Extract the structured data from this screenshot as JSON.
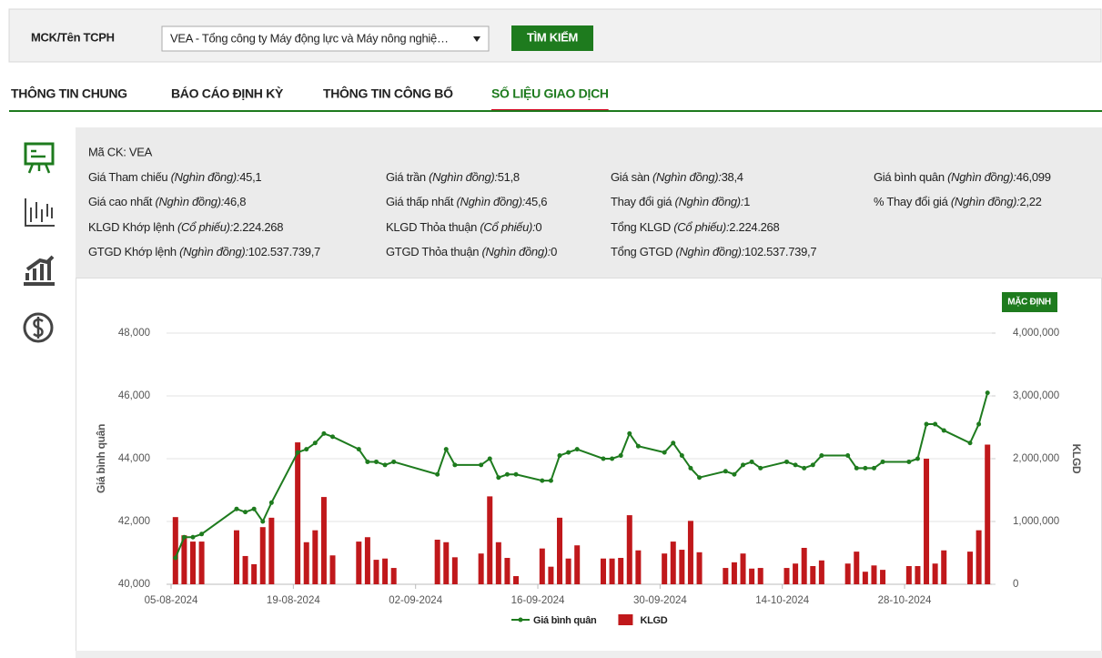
{
  "search": {
    "label": "MCK/Tên TCPH",
    "selected": "VEA - Tổng công ty Máy động lực và Máy nông nghiệ…",
    "button": "TÌM KIẾM"
  },
  "tabs": [
    "THÔNG TIN CHUNG",
    "BÁO CÁO ĐỊNH KỲ",
    "THÔNG TIN CÔNG BỐ",
    "SỐ LIỆU GIAO DỊCH"
  ],
  "active_tab": 3,
  "info": {
    "title": "Mã CK: VEA",
    "rows": [
      [
        {
          "label": "Giá Tham chiếu",
          "unit": "(Nghìn đồng):",
          "value": "45,1"
        },
        {
          "label": "Giá trần",
          "unit": "(Nghìn đồng):",
          "value": "51,8"
        },
        {
          "label": "Giá sàn",
          "unit": "(Nghìn đồng):",
          "value": "38,4"
        },
        {
          "label": "Giá bình quân",
          "unit": "(Nghìn đồng):",
          "value": "46,099"
        }
      ],
      [
        {
          "label": "Giá cao nhất",
          "unit": "(Nghìn đồng):",
          "value": "46,8"
        },
        {
          "label": "Giá thấp nhất",
          "unit": "(Nghìn đồng):",
          "value": "45,6"
        },
        {
          "label": "Thay đổi giá",
          "unit": "(Nghìn đồng):",
          "value": "1"
        },
        {
          "label": "% Thay đổi giá",
          "unit": "(Nghìn đồng):",
          "value": "2,22"
        }
      ],
      [
        {
          "label": "KLGD Khớp lệnh",
          "unit": "(Cổ phiếu):",
          "value": "2.224.268"
        },
        {
          "label": "KLGD Thỏa thuận",
          "unit": "(Cổ phiếu):",
          "value": "0"
        },
        {
          "label": "Tổng KLGD",
          "unit": "(Cổ phiếu):",
          "value": "2.224.268"
        }
      ],
      [
        {
          "label": "GTGD Khớp lệnh",
          "unit": "(Nghìn đồng):",
          "value": "102.537.739,7"
        },
        {
          "label": "GTGD Thỏa thuận",
          "unit": "(Nghìn đồng):",
          "value": "0"
        },
        {
          "label": "Tổng GTGD",
          "unit": "(Nghìn đồng):",
          "value": "102.537.739,7"
        }
      ]
    ]
  },
  "chart_data": {
    "type": "combo",
    "reset_button": "MẶC ĐỊNH",
    "y_label": "Giá bình quân",
    "y2_label": "KLGD",
    "grid": true,
    "x": [
      "05-08-2024",
      "06-08-2024",
      "07-08-2024",
      "08-08-2024",
      "12-08-2024",
      "13-08-2024",
      "14-08-2024",
      "15-08-2024",
      "16-08-2024",
      "19-08-2024",
      "20-08-2024",
      "21-08-2024",
      "22-08-2024",
      "23-08-2024",
      "26-08-2024",
      "27-08-2024",
      "28-08-2024",
      "29-08-2024",
      "30-08-2024",
      "04-09-2024",
      "05-09-2024",
      "06-09-2024",
      "09-09-2024",
      "10-09-2024",
      "11-09-2024",
      "12-09-2024",
      "13-09-2024",
      "16-09-2024",
      "17-09-2024",
      "18-09-2024",
      "19-09-2024",
      "20-09-2024",
      "23-09-2024",
      "24-09-2024",
      "25-09-2024",
      "26-09-2024",
      "27-09-2024",
      "30-09-2024",
      "01-10-2024",
      "02-10-2024",
      "03-10-2024",
      "04-10-2024",
      "07-10-2024",
      "08-10-2024",
      "09-10-2024",
      "10-10-2024",
      "11-10-2024",
      "14-10-2024",
      "15-10-2024",
      "16-10-2024",
      "17-10-2024",
      "18-10-2024",
      "21-10-2024",
      "22-10-2024",
      "23-10-2024",
      "24-10-2024",
      "25-10-2024",
      "28-10-2024",
      "29-10-2024",
      "30-10-2024",
      "31-10-2024",
      "01-11-2024",
      "04-11-2024",
      "05-11-2024",
      "06-11-2024"
    ],
    "xlim": [
      "05-08-2024",
      "07-11-2024"
    ],
    "xticks": [
      "05-08-2024",
      "19-08-2024",
      "02-09-2024",
      "16-09-2024",
      "30-09-2024",
      "14-10-2024",
      "28-10-2024"
    ],
    "ylim": [
      40000,
      48000
    ],
    "yticks": [
      {
        "value": 40000,
        "label": "40,000"
      },
      {
        "value": 42000,
        "label": "42,000"
      },
      {
        "value": 44000,
        "label": "44,000"
      },
      {
        "value": 46000,
        "label": "46,000"
      },
      {
        "value": 48000,
        "label": "48,000"
      }
    ],
    "y2lim": [
      0,
      4000000
    ],
    "y2ticks": [
      0,
      {
        "value": 1000000,
        "label": "1,000,000"
      },
      {
        "value": 2000000,
        "label": "2,000,000"
      },
      {
        "value": 3000000,
        "label": "3,000,000"
      },
      {
        "value": 4000000,
        "label": "4,000,000"
      }
    ],
    "series": [
      {
        "name": "Giá bình quân",
        "type": "line",
        "color": "#1e7b1e",
        "axis": "y",
        "values": [
          40840,
          41500,
          41500,
          41600,
          42400,
          42300,
          42400,
          42000,
          42600,
          44200,
          44300,
          44500,
          44800,
          44700,
          44300,
          43900,
          43900,
          43800,
          43900,
          43500,
          44300,
          43800,
          43800,
          44000,
          43400,
          43500,
          43500,
          43300,
          43300,
          44100,
          44200,
          44300,
          44000,
          44000,
          44100,
          44800,
          44400,
          44200,
          44500,
          44100,
          43700,
          43400,
          43600,
          43500,
          43800,
          43900,
          43700,
          43900,
          43800,
          43700,
          43800,
          44100,
          44100,
          43700,
          43700,
          43700,
          43900,
          43900,
          44000,
          45100,
          45100,
          44900,
          44500,
          45100,
          46099
        ]
      },
      {
        "name": "KLGD",
        "type": "bar",
        "color": "#c0181b",
        "axis": "y2",
        "values": [
          1070000,
          780000,
          680000,
          680000,
          860000,
          450000,
          320000,
          910000,
          1060000,
          2260000,
          670000,
          860000,
          1390000,
          460000,
          680000,
          750000,
          390000,
          410000,
          260000,
          710000,
          670000,
          430000,
          490000,
          1400000,
          670000,
          420000,
          130000,
          570000,
          280000,
          1060000,
          410000,
          620000,
          410000,
          410000,
          420000,
          1100000,
          540000,
          490000,
          680000,
          550000,
          1010000,
          510000,
          260000,
          350000,
          490000,
          250000,
          260000,
          260000,
          330000,
          580000,
          290000,
          380000,
          330000,
          520000,
          200000,
          300000,
          230000,
          290000,
          290000,
          2000000,
          330000,
          540000,
          520000,
          860000,
          2224268
        ]
      }
    ]
  }
}
